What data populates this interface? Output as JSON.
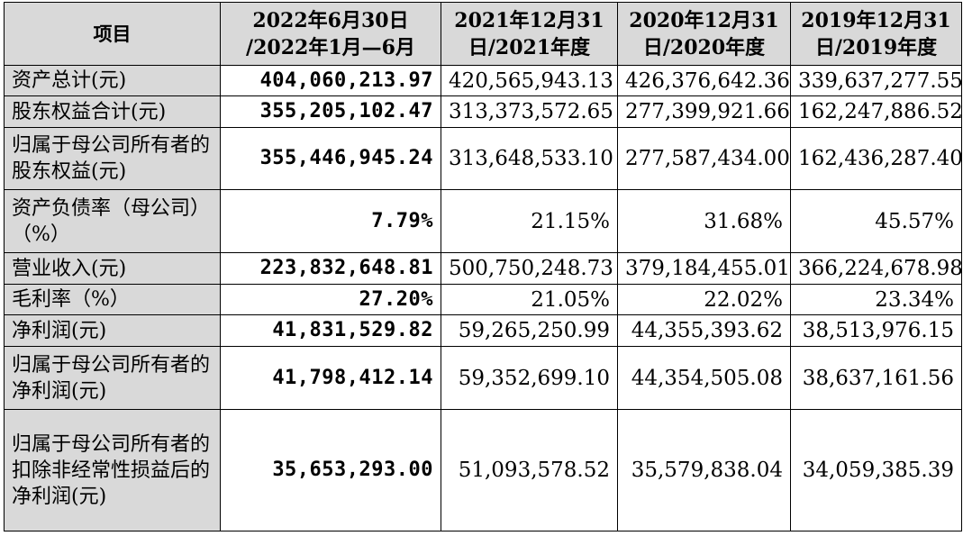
{
  "header": {
    "item": "项目",
    "columns": [
      {
        "line1": "2022年6月30日",
        "line2": "/2022年1月—6月"
      },
      {
        "line1": "2021年12月31",
        "line2": "日/2021年度"
      },
      {
        "line1": "2020年12月31",
        "line2": "日/2020年度"
      },
      {
        "line1": "2019年12月31",
        "line2": "日/2019年度"
      }
    ]
  },
  "rows": [
    {
      "label": "资产总计(元)",
      "values": [
        "404,060,213.97",
        "420,565,943.13",
        "426,376,642.36",
        "339,637,277.55"
      ]
    },
    {
      "label": "股东权益合计(元)",
      "values": [
        "355,205,102.47",
        "313,373,572.65",
        "277,399,921.66",
        "162,247,886.52"
      ]
    },
    {
      "label": "归属于母公司所有者的股东权益(元)",
      "values": [
        "355,446,945.24",
        "313,648,533.10",
        "277,587,434.00",
        "162,436,287.40"
      ]
    },
    {
      "label": "资产负债率（母公司）（%）",
      "values": [
        "7.79%",
        "21.15%",
        "31.68%",
        "45.57%"
      ]
    },
    {
      "label": "营业收入(元)",
      "values": [
        "223,832,648.81",
        "500,750,248.73",
        "379,184,455.01",
        "366,224,678.98"
      ]
    },
    {
      "label": "毛利率（%）",
      "values": [
        "27.20%",
        "21.05%",
        "22.02%",
        "23.34%"
      ]
    },
    {
      "label": "净利润(元)",
      "values": [
        "41,831,529.82",
        "59,265,250.99",
        "44,355,393.62",
        "38,513,976.15"
      ]
    },
    {
      "label": "归属于母公司所有者的净利润(元)",
      "values": [
        "41,798,412.14",
        "59,352,699.10",
        "44,354,505.08",
        "38,637,161.56"
      ]
    },
    {
      "label": "归属于母公司所有者的扣除非经常性损益后的净利润(元)",
      "values": [
        "35,653,293.00",
        "51,093,578.52",
        "35,579,838.04",
        "34,059,385.39"
      ]
    }
  ]
}
